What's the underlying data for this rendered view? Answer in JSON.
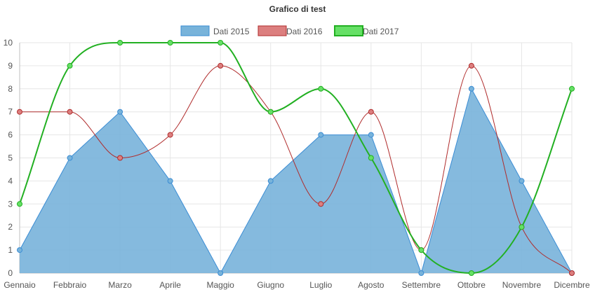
{
  "chart_data": {
    "type": "line",
    "title": "Grafico di test",
    "categories": [
      "Gennaio",
      "Febbraio",
      "Marzo",
      "Aprile",
      "Maggio",
      "Giugno",
      "Luglio",
      "Agosto",
      "Settembre",
      "Ottobre",
      "Novembre",
      "Dicembre"
    ],
    "ylim": [
      0,
      10
    ],
    "yticks": [
      0,
      1,
      2,
      3,
      4,
      5,
      6,
      7,
      8,
      9,
      10
    ],
    "grid": true,
    "legend_position": "top",
    "series": [
      {
        "name": "Dati 2015",
        "values": [
          1,
          5,
          7,
          4,
          0,
          4,
          6,
          6,
          0,
          8,
          4,
          0
        ],
        "color": "#3a8cd4",
        "fill": "#78b3da",
        "style": "area"
      },
      {
        "name": "Dati 2016",
        "values": [
          7,
          7,
          5,
          6,
          9,
          7,
          3,
          7,
          1,
          9,
          2,
          0
        ],
        "color": "#b02c2c",
        "fill": "#dc7f7f",
        "style": "line"
      },
      {
        "name": "Dati 2017",
        "values": [
          3,
          9,
          10,
          10,
          10,
          7,
          8,
          5,
          1,
          0,
          2,
          8
        ],
        "color": "#22b022",
        "fill": "#66e066",
        "style": "line"
      }
    ]
  }
}
